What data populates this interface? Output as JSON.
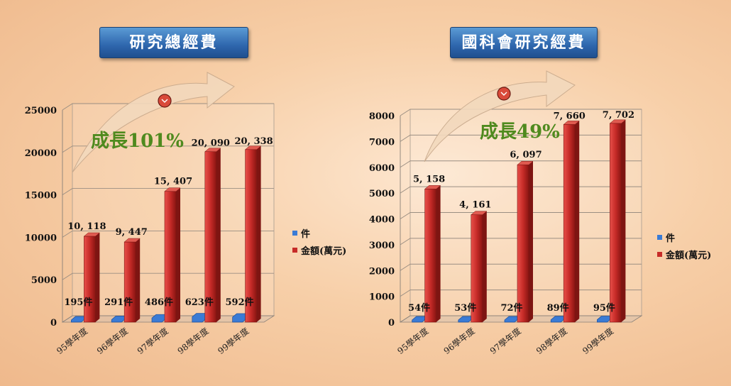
{
  "colors": {
    "bar_red": "#c62b28",
    "bar_blue": "#3a7bd5",
    "title_bg": "#2e66ad",
    "growth_text": "#4f8a1e",
    "arrow_fill": "#f3d9bd"
  },
  "chart_data": [
    {
      "type": "bar",
      "title": "研究總經費",
      "categories": [
        "95學年度",
        "96學年度",
        "97學年度",
        "98學年度",
        "99學年度"
      ],
      "series": [
        {
          "name": "件",
          "values": [
            195,
            291,
            486,
            623,
            592
          ],
          "labels": [
            "195件",
            "291件",
            "486件",
            "623件",
            "592件"
          ]
        },
        {
          "name": "金額(萬元)",
          "values": [
            10118,
            9447,
            15407,
            20090,
            20338
          ],
          "labels": [
            "10, 118",
            "9, 447",
            "15, 407",
            "20, 090",
            "20, 338"
          ]
        }
      ],
      "yticks": [
        "0",
        "5000",
        "10000",
        "15000",
        "20000",
        "25000"
      ],
      "ylim": [
        0,
        25000
      ],
      "grid": true,
      "legend": "right",
      "annotation": "成長101%"
    },
    {
      "type": "bar",
      "title": "國科會研究經費",
      "categories": [
        "95學年度",
        "96學年度",
        "97學年度",
        "98學年度",
        "99學年度"
      ],
      "series": [
        {
          "name": "件",
          "values": [
            54,
            53,
            72,
            89,
            95
          ],
          "labels": [
            "54件",
            "53件",
            "72件",
            "89件",
            "95件"
          ]
        },
        {
          "name": "金額(萬元)",
          "values": [
            5158,
            4161,
            6097,
            7660,
            7702
          ],
          "labels": [
            "5, 158",
            "4, 161",
            "6, 097",
            "7, 660",
            "7, 702"
          ]
        }
      ],
      "yticks": [
        "0",
        "1000",
        "2000",
        "3000",
        "4000",
        "5000",
        "6000",
        "7000",
        "8000"
      ],
      "ylim": [
        0,
        8000
      ],
      "grid": true,
      "legend": "right",
      "annotation": "成長49%"
    }
  ]
}
